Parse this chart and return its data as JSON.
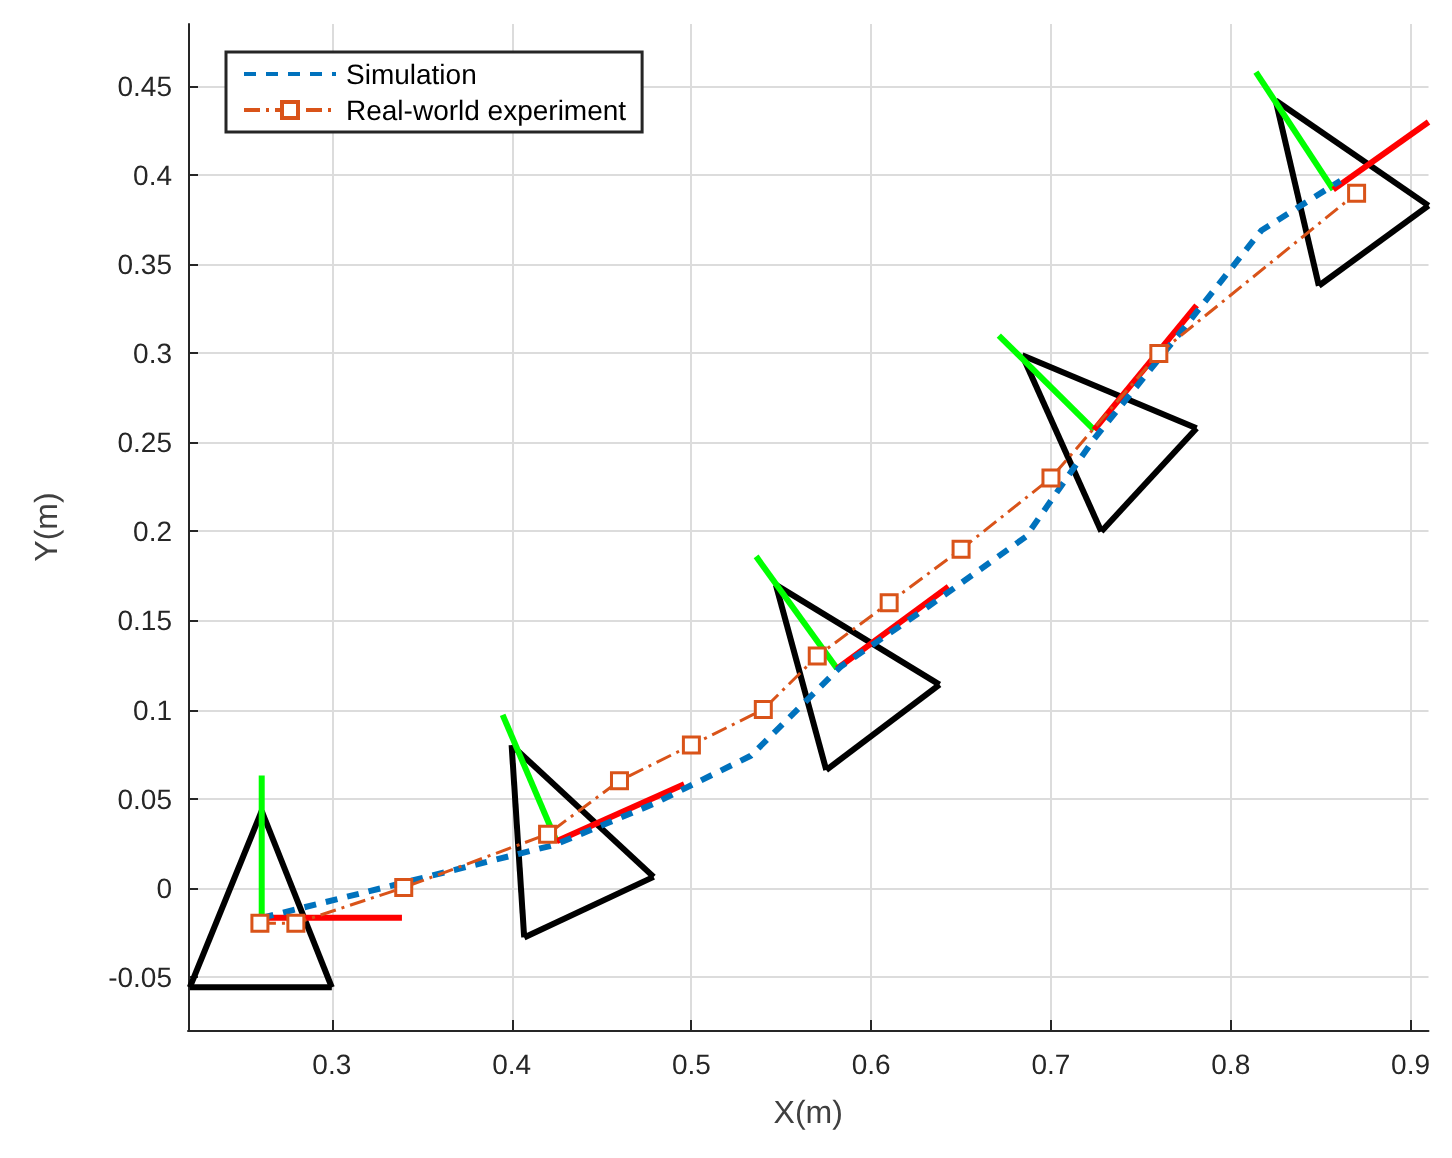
{
  "chart_data": {
    "type": "line",
    "xlabel": "X(m)",
    "ylabel": "Y(m)",
    "xlim": [
      0.22,
      0.91
    ],
    "ylim": [
      -0.08,
      0.485
    ],
    "xticks": [
      0.3,
      0.4,
      0.5,
      0.6,
      0.7,
      0.8,
      0.9
    ],
    "yticks": [
      -0.05,
      0,
      0.05,
      0.1,
      0.15,
      0.2,
      0.25,
      0.3,
      0.35,
      0.4,
      0.45
    ],
    "grid": true,
    "legend": "top left",
    "series": [
      {
        "name": "Simulation",
        "color": "#0072bd",
        "line_style": "dashed",
        "marker": "none",
        "x": [
          0.261,
          0.337,
          0.424,
          0.479,
          0.533,
          0.583,
          0.632,
          0.686,
          0.724,
          0.773,
          0.817,
          0.861
        ],
        "values": [
          -0.017,
          0.002,
          0.024,
          0.047,
          0.074,
          0.124,
          0.158,
          0.197,
          0.252,
          0.313,
          0.369,
          0.397
        ]
      },
      {
        "name": "Real-world experiment",
        "color": "#d95319",
        "line_style": "dashdot",
        "marker": "square",
        "x": [
          0.26,
          0.28,
          0.34,
          0.42,
          0.46,
          0.5,
          0.54,
          0.57,
          0.61,
          0.65,
          0.7,
          0.76,
          0.87
        ],
        "values": [
          -0.02,
          -0.02,
          0.0,
          0.03,
          0.06,
          0.08,
          0.1,
          0.13,
          0.16,
          0.19,
          0.23,
          0.3,
          0.39
        ]
      },
      {
        "color": "#000000",
        "line_style": "solid",
        "marker": "none",
        "x": [
          0.261,
          0.221
        ],
        "values": [
          0.043,
          -0.056
        ]
      },
      {
        "color": "#000000",
        "line_style": "solid",
        "marker": "none",
        "x": [
          0.221,
          0.3
        ],
        "values": [
          -0.056,
          -0.056
        ]
      },
      {
        "color": "#000000",
        "line_style": "solid",
        "marker": "none",
        "x": [
          0.3,
          0.261
        ],
        "values": [
          -0.056,
          0.043
        ]
      },
      {
        "color": "#000000",
        "line_style": "solid",
        "marker": "none",
        "x": [
          0.4,
          0.479
        ],
        "values": [
          0.08,
          0.006
        ]
      },
      {
        "color": "#000000",
        "line_style": "solid",
        "marker": "none",
        "x": [
          0.479,
          0.407
        ],
        "values": [
          0.006,
          -0.028
        ]
      },
      {
        "color": "#000000",
        "line_style": "solid",
        "marker": "none",
        "x": [
          0.407,
          0.4
        ],
        "values": [
          -0.028,
          0.08
        ]
      },
      {
        "color": "#000000",
        "line_style": "solid",
        "marker": "none",
        "x": [
          0.547,
          0.638
        ],
        "values": [
          0.17,
          0.114
        ]
      },
      {
        "color": "#000000",
        "line_style": "solid",
        "marker": "none",
        "x": [
          0.638,
          0.575
        ],
        "values": [
          0.114,
          0.066
        ]
      },
      {
        "color": "#000000",
        "line_style": "solid",
        "marker": "none",
        "x": [
          0.575,
          0.547
        ],
        "values": [
          0.066,
          0.17
        ]
      },
      {
        "color": "#000000",
        "line_style": "solid",
        "marker": "none",
        "x": [
          0.684,
          0.781
        ],
        "values": [
          0.299,
          0.258
        ]
      },
      {
        "color": "#000000",
        "line_style": "solid",
        "marker": "none",
        "x": [
          0.781,
          0.728
        ],
        "values": [
          0.258,
          0.2
        ]
      },
      {
        "color": "#000000",
        "line_style": "solid",
        "marker": "none",
        "x": [
          0.728,
          0.684
        ],
        "values": [
          0.2,
          0.299
        ]
      },
      {
        "color": "#000000",
        "line_style": "solid",
        "marker": "none",
        "x": [
          0.825,
          0.91
        ],
        "values": [
          0.442,
          0.383
        ]
      },
      {
        "color": "#000000",
        "line_style": "solid",
        "marker": "none",
        "x": [
          0.91,
          0.849
        ],
        "values": [
          0.383,
          0.338
        ]
      },
      {
        "color": "#000000",
        "line_style": "solid",
        "marker": "none",
        "x": [
          0.849,
          0.825
        ],
        "values": [
          0.338,
          0.442
        ]
      },
      {
        "color": "#00ff00",
        "line_style": "solid",
        "marker": "none",
        "x": [
          0.261,
          0.261
        ],
        "values": [
          -0.017,
          0.063
        ]
      },
      {
        "color": "#00ff00",
        "line_style": "solid",
        "marker": "none",
        "x": [
          0.425,
          0.395
        ],
        "values": [
          0.026,
          0.097
        ]
      },
      {
        "color": "#00ff00",
        "line_style": "solid",
        "marker": "none",
        "x": [
          0.581,
          0.536
        ],
        "values": [
          0.123,
          0.186
        ]
      },
      {
        "color": "#00ff00",
        "line_style": "solid",
        "marker": "none",
        "x": [
          0.724,
          0.671
        ],
        "values": [
          0.257,
          0.31
        ]
      },
      {
        "color": "#00ff00",
        "line_style": "solid",
        "marker": "none",
        "x": [
          0.857,
          0.814
        ],
        "values": [
          0.392,
          0.458
        ]
      },
      {
        "color": "#ff0000",
        "line_style": "solid",
        "marker": "none",
        "x": [
          0.261,
          0.339
        ],
        "values": [
          -0.017,
          -0.017
        ]
      },
      {
        "color": "#ff0000",
        "line_style": "solid",
        "marker": "none",
        "x": [
          0.425,
          0.496
        ],
        "values": [
          0.026,
          0.058
        ]
      },
      {
        "color": "#ff0000",
        "line_style": "solid",
        "marker": "none",
        "x": [
          0.581,
          0.643
        ],
        "values": [
          0.123,
          0.169
        ]
      },
      {
        "color": "#ff0000",
        "line_style": "solid",
        "marker": "none",
        "x": [
          0.724,
          0.781
        ],
        "values": [
          0.257,
          0.327
        ]
      },
      {
        "color": "#ff0000",
        "line_style": "solid",
        "marker": "none",
        "x": [
          0.857,
          0.91
        ],
        "values": [
          0.392,
          0.43
        ]
      }
    ]
  }
}
